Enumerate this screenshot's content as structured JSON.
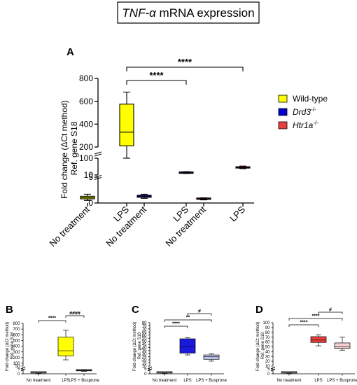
{
  "figure": {
    "title_gene": "TNF-α",
    "title_rest": " mRNA expression"
  },
  "legend": [
    {
      "label": "Wild-type",
      "color": "#ffff00",
      "italic": false,
      "sup": ""
    },
    {
      "label": "Drd3",
      "color": "#0000cc",
      "italic": true,
      "sup": "-/-"
    },
    {
      "label": "Htr1a",
      "color": "#e8403c",
      "italic": true,
      "sup": "-/-"
    }
  ],
  "chart_data": [
    {
      "panel": "A",
      "type": "box",
      "ylabel_line1": "Fold change (ΔCt method)",
      "ylabel_line2": "Ref. gene S18",
      "broken_y_axis": true,
      "y_segments": [
        [
          0,
          5
        ],
        [
          10,
          100
        ],
        [
          200,
          800
        ]
      ],
      "yticks": [
        0,
        5,
        10,
        100,
        200,
        400,
        600,
        800
      ],
      "categories": [
        "No treatment",
        "LPS",
        "No treatment",
        "LPS",
        "No treatment",
        "LPS"
      ],
      "boxes": [
        {
          "group": "Wild-type",
          "treatment": "No treatment",
          "min": 0.5,
          "q1": 0.8,
          "median": 1.0,
          "q3": 1.3,
          "max": 1.7,
          "color": "#ffff00"
        },
        {
          "group": "Wild-type",
          "treatment": "LPS",
          "min": 150,
          "q1": 210,
          "median": 330,
          "q3": 575,
          "max": 680,
          "color": "#ffff00"
        },
        {
          "group": "Drd3-/-",
          "treatment": "No treatment",
          "min": 0.9,
          "q1": 1.1,
          "median": 1.3,
          "q3": 1.5,
          "max": 1.7,
          "color": "#0000cc"
        },
        {
          "group": "Drd3-/-",
          "treatment": "LPS",
          "min": 18,
          "q1": 19,
          "median": 22,
          "q3": 26,
          "max": 28,
          "color": "#0000cc"
        },
        {
          "group": "Htr1a-/-",
          "treatment": "No treatment",
          "min": 0.6,
          "q1": 0.7,
          "median": 0.8,
          "q3": 0.9,
          "max": 1.0,
          "color": "#e8403c"
        },
        {
          "group": "Htr1a-/-",
          "treatment": "LPS",
          "min": 44,
          "q1": 47,
          "median": 49,
          "q3": 52,
          "max": 58,
          "color": "#e8403c"
        }
      ],
      "significance": [
        {
          "from": 1,
          "to": 3,
          "label": "****"
        },
        {
          "from": 1,
          "to": 5,
          "label": "****"
        }
      ]
    },
    {
      "panel": "B",
      "type": "box",
      "ylabel_line1": "Fold change (ΔCt method)",
      "ylabel_line2": "Ref. gene S18",
      "broken_y_axis": true,
      "y_segments": [
        [
          0,
          5
        ],
        [
          50,
          800
        ]
      ],
      "yticks": [
        0,
        5,
        50,
        100,
        200,
        300,
        400,
        500,
        600,
        700,
        800
      ],
      "categories": [
        "No treatment",
        "LPS",
        "LPS + Busprone"
      ],
      "boxes": [
        {
          "treatment": "No treatment",
          "min": 0.5,
          "q1": 0.8,
          "median": 1.0,
          "q3": 1.2,
          "max": 1.5,
          "color": "#b3b3b3"
        },
        {
          "treatment": "LPS",
          "min": 160,
          "q1": 230,
          "median": 320,
          "q3": 560,
          "max": 680,
          "color": "#ffff00"
        },
        {
          "treatment": "LPS + Busprone",
          "min": 2.5,
          "q1": 3.0,
          "median": 3.5,
          "q3": 4.0,
          "max": 4.5,
          "color": "#f3f0cc"
        }
      ],
      "significance": [
        {
          "from": 0,
          "to": 1,
          "label": "****"
        },
        {
          "from": 1,
          "to": 2,
          "label": "####"
        }
      ]
    },
    {
      "panel": "C",
      "type": "box",
      "ylabel_line1": "Fold change (ΔCt method)",
      "ylabel_line2": "Ref. gene S18",
      "broken_y_axis": true,
      "y_segments": [
        [
          0,
          5
        ],
        [
          10,
          80
        ]
      ],
      "yticks": [
        0,
        5,
        10,
        15,
        20,
        25,
        30,
        35,
        40,
        45,
        50,
        55,
        60,
        65,
        70,
        75,
        80
      ],
      "categories": [
        "No treatment",
        "LPS",
        "LPS + Busprone"
      ],
      "boxes": [
        {
          "treatment": "No treatment",
          "min": 0.5,
          "q1": 0.8,
          "median": 1.0,
          "q3": 1.2,
          "max": 1.5,
          "color": "#b3b3b3"
        },
        {
          "treatment": "LPS",
          "min": 28,
          "q1": 31,
          "median": 41,
          "q3": 54,
          "max": 56,
          "color": "#1a1adc"
        },
        {
          "treatment": "LPS + Busprone",
          "min": 18,
          "q1": 21,
          "median": 25,
          "q3": 28,
          "max": 30,
          "color": "#c9cdf6"
        }
      ],
      "significance": [
        {
          "from": 0,
          "to": 1,
          "label": "****"
        },
        {
          "from": 0,
          "to": 2,
          "label": "**"
        },
        {
          "from": 1,
          "to": 2,
          "label": "#"
        }
      ]
    },
    {
      "panel": "D",
      "type": "box",
      "ylabel_line1": "Fold change (ΔCt method)",
      "ylabel_line2": "Ref. gene S18",
      "broken_y_axis": true,
      "y_segments": [
        [
          0,
          5
        ],
        [
          10,
          100
        ]
      ],
      "yticks": [
        0,
        5,
        10,
        20,
        30,
        40,
        50,
        60,
        70,
        80,
        90,
        100
      ],
      "categories": [
        "No treatment",
        "LPS",
        "LPS + Busprone"
      ],
      "boxes": [
        {
          "treatment": "No treatment",
          "min": 0.6,
          "q1": 0.8,
          "median": 1.0,
          "q3": 1.2,
          "max": 1.4,
          "color": "#b3b3b3"
        },
        {
          "treatment": "LPS",
          "min": 52,
          "q1": 59,
          "median": 64,
          "q3": 71,
          "max": 75,
          "color": "#e8403c"
        },
        {
          "treatment": "LPS + Busprone",
          "min": 43,
          "q1": 47,
          "median": 50,
          "q3": 58,
          "max": 70,
          "color": "#f6cfcf"
        }
      ],
      "significance": [
        {
          "from": 0,
          "to": 1,
          "label": "****"
        },
        {
          "from": 0,
          "to": 2,
          "label": "****"
        },
        {
          "from": 1,
          "to": 2,
          "label": "#"
        }
      ]
    }
  ]
}
